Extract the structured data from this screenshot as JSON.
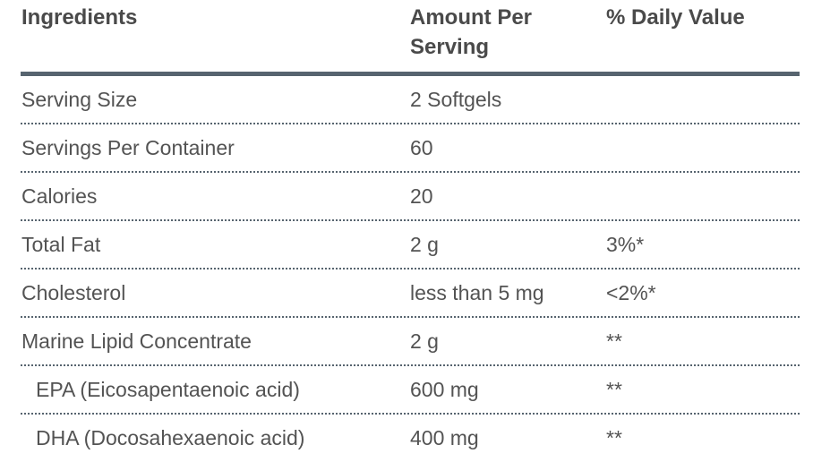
{
  "table": {
    "columns": [
      {
        "label": "Ingredients"
      },
      {
        "label": "Amount Per Serving"
      },
      {
        "label": "% Daily Value"
      }
    ],
    "rows": [
      {
        "label": "Serving Size",
        "amount": "2 Softgels",
        "daily_value": "",
        "indent": false
      },
      {
        "label": "Servings Per Container",
        "amount": "60",
        "daily_value": "",
        "indent": false
      },
      {
        "label": "Calories",
        "amount": "20",
        "daily_value": "",
        "indent": false
      },
      {
        "label": "Total Fat",
        "amount": "2 g",
        "daily_value": "3%*",
        "indent": false
      },
      {
        "label": "Cholesterol",
        "amount": "less than 5 mg",
        "daily_value": "<2%*",
        "indent": false
      },
      {
        "label": "Marine Lipid Concentrate",
        "amount": "2 g",
        "daily_value": "**",
        "indent": false
      },
      {
        "label": "EPA (Eicosapentaenoic acid)",
        "amount": "600 mg",
        "daily_value": "**",
        "indent": true
      },
      {
        "label": "DHA (Docosahexaenoic acid)",
        "amount": "400 mg",
        "daily_value": "**",
        "indent": true
      }
    ]
  },
  "colors": {
    "rule": "#57646F",
    "header_text": "#4A4A4A",
    "body_text": "#535353",
    "page_bg": "#FFFFFF"
  }
}
